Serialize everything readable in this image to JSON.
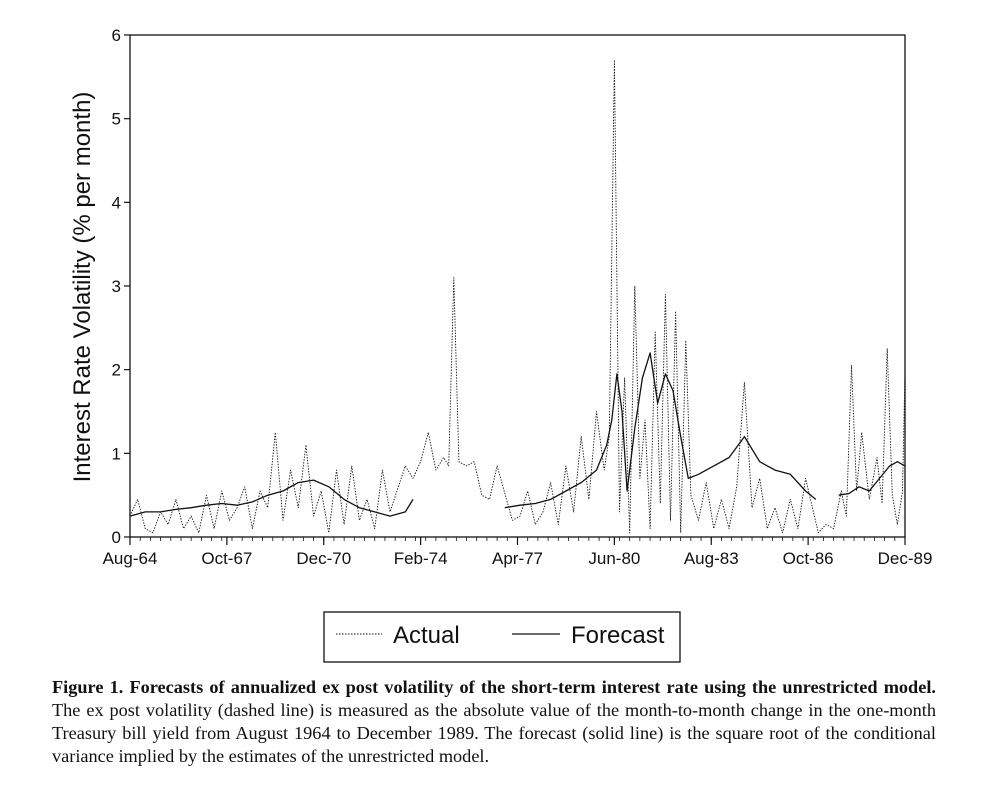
{
  "chart_data": {
    "type": "line",
    "ylabel": "Interest Rate Volatility (% per month)",
    "xlabel": "",
    "ylim": [
      0,
      6
    ],
    "yticks": [
      0,
      1,
      2,
      3,
      4,
      5,
      6
    ],
    "x_range": [
      "Aug-64",
      "Dec-89"
    ],
    "x_tick_labels": [
      "Aug-64",
      "Oct-67",
      "Dec-70",
      "Feb-74",
      "Apr-77",
      "Jun-80",
      "Aug-83",
      "Oct-86",
      "Dec-89"
    ],
    "grid": false,
    "legend": {
      "placement": "bottom-center",
      "entries": [
        "Actual",
        "Forecast"
      ]
    },
    "series": [
      {
        "name": "Actual",
        "style": "dashed",
        "points": [
          [
            "1964-08",
            0.25
          ],
          [
            "1964-11",
            0.45
          ],
          [
            "1965-02",
            0.1
          ],
          [
            "1965-05",
            0.05
          ],
          [
            "1965-08",
            0.3
          ],
          [
            "1965-11",
            0.15
          ],
          [
            "1966-02",
            0.45
          ],
          [
            "1966-05",
            0.1
          ],
          [
            "1966-08",
            0.25
          ],
          [
            "1966-11",
            0.05
          ],
          [
            "1967-02",
            0.5
          ],
          [
            "1967-05",
            0.1
          ],
          [
            "1967-08",
            0.55
          ],
          [
            "1967-11",
            0.2
          ],
          [
            "1968-02",
            0.35
          ],
          [
            "1968-05",
            0.6
          ],
          [
            "1968-08",
            0.1
          ],
          [
            "1968-11",
            0.55
          ],
          [
            "1969-02",
            0.35
          ],
          [
            "1969-05",
            1.25
          ],
          [
            "1969-08",
            0.2
          ],
          [
            "1969-11",
            0.8
          ],
          [
            "1970-02",
            0.35
          ],
          [
            "1970-05",
            1.1
          ],
          [
            "1970-08",
            0.25
          ],
          [
            "1970-11",
            0.55
          ],
          [
            "1971-02",
            0.05
          ],
          [
            "1971-05",
            0.8
          ],
          [
            "1971-08",
            0.15
          ],
          [
            "1971-11",
            0.85
          ],
          [
            "1972-02",
            0.2
          ],
          [
            "1972-05",
            0.45
          ],
          [
            "1972-08",
            0.1
          ],
          [
            "1972-11",
            0.8
          ],
          [
            "1973-02",
            0.3
          ],
          [
            "1973-08",
            0.85
          ],
          [
            "1973-11",
            0.7
          ],
          [
            "1974-02",
            0.9
          ],
          [
            "1974-05",
            1.25
          ],
          [
            "1974-08",
            0.8
          ],
          [
            "1974-11",
            0.95
          ],
          [
            "1975-01",
            0.85
          ],
          [
            "1975-03",
            3.1
          ],
          [
            "1975-05",
            0.9
          ],
          [
            "1975-08",
            0.85
          ],
          [
            "1975-11",
            0.9
          ],
          [
            "1976-02",
            0.5
          ],
          [
            "1976-05",
            0.45
          ],
          [
            "1976-08",
            0.85
          ],
          [
            "1977-02",
            0.2
          ],
          [
            "1977-05",
            0.25
          ],
          [
            "1977-08",
            0.55
          ],
          [
            "1977-11",
            0.15
          ],
          [
            "1978-02",
            0.3
          ],
          [
            "1978-05",
            0.65
          ],
          [
            "1978-08",
            0.15
          ],
          [
            "1978-11",
            0.85
          ],
          [
            "1979-02",
            0.3
          ],
          [
            "1979-05",
            1.2
          ],
          [
            "1979-08",
            0.45
          ],
          [
            "1979-11",
            1.5
          ],
          [
            "1980-02",
            0.8
          ],
          [
            "1980-04",
            1.2
          ],
          [
            "1980-06",
            5.7
          ],
          [
            "1980-08",
            0.3
          ],
          [
            "1980-10",
            1.9
          ],
          [
            "1980-12",
            0.05
          ],
          [
            "1981-02",
            3.0
          ],
          [
            "1981-04",
            0.7
          ],
          [
            "1981-06",
            1.4
          ],
          [
            "1981-08",
            0.1
          ],
          [
            "1981-10",
            2.45
          ],
          [
            "1981-12",
            0.4
          ],
          [
            "1982-02",
            2.9
          ],
          [
            "1982-04",
            0.2
          ],
          [
            "1982-06",
            2.7
          ],
          [
            "1982-08",
            0.05
          ],
          [
            "1982-10",
            2.35
          ],
          [
            "1982-12",
            0.5
          ],
          [
            "1983-03",
            0.2
          ],
          [
            "1983-06",
            0.65
          ],
          [
            "1983-09",
            0.1
          ],
          [
            "1983-12",
            0.45
          ],
          [
            "1984-03",
            0.1
          ],
          [
            "1984-06",
            0.6
          ],
          [
            "1984-09",
            1.85
          ],
          [
            "1984-12",
            0.35
          ],
          [
            "1985-03",
            0.7
          ],
          [
            "1985-06",
            0.1
          ],
          [
            "1985-09",
            0.35
          ],
          [
            "1985-12",
            0.05
          ],
          [
            "1986-03",
            0.45
          ],
          [
            "1986-06",
            0.1
          ],
          [
            "1986-09",
            0.7
          ],
          [
            "1987-02",
            0.05
          ],
          [
            "1987-05",
            0.15
          ],
          [
            "1987-08",
            0.1
          ],
          [
            "1987-11",
            0.55
          ],
          [
            "1988-01",
            0.25
          ],
          [
            "1988-03",
            2.05
          ],
          [
            "1988-05",
            0.55
          ],
          [
            "1988-07",
            1.25
          ],
          [
            "1988-10",
            0.45
          ],
          [
            "1989-01",
            0.95
          ],
          [
            "1989-03",
            0.4
          ],
          [
            "1989-05",
            2.25
          ],
          [
            "1989-07",
            0.5
          ],
          [
            "1989-09",
            0.15
          ],
          [
            "1989-11",
            0.55
          ],
          [
            "1989-12",
            2.0
          ]
        ]
      },
      {
        "name": "Forecast",
        "style": "solid",
        "points": [
          [
            "1964-08",
            0.25
          ],
          [
            "1965-02",
            0.3
          ],
          [
            "1965-08",
            0.3
          ],
          [
            "1966-02",
            0.33
          ],
          [
            "1966-08",
            0.35
          ],
          [
            "1967-02",
            0.38
          ],
          [
            "1967-08",
            0.4
          ],
          [
            "1968-02",
            0.38
          ],
          [
            "1968-08",
            0.42
          ],
          [
            "1969-02",
            0.5
          ],
          [
            "1969-08",
            0.55
          ],
          [
            "1970-02",
            0.65
          ],
          [
            "1970-08",
            0.68
          ],
          [
            "1971-02",
            0.6
          ],
          [
            "1971-08",
            0.45
          ],
          [
            "1972-02",
            0.35
          ],
          [
            "1972-08",
            0.3
          ],
          [
            "1973-02",
            0.25
          ],
          [
            "1973-08",
            0.3
          ],
          [
            "1973-11",
            0.45
          ]
        ]
      },
      {
        "name": "Forecast",
        "style": "solid",
        "points": [
          [
            "1976-11",
            0.35
          ],
          [
            "1977-05",
            0.38
          ],
          [
            "1977-11",
            0.4
          ],
          [
            "1978-05",
            0.45
          ],
          [
            "1978-11",
            0.55
          ],
          [
            "1979-05",
            0.65
          ],
          [
            "1979-11",
            0.8
          ],
          [
            "1980-03",
            1.1
          ],
          [
            "1980-05",
            1.4
          ],
          [
            "1980-07",
            1.95
          ],
          [
            "1980-09",
            1.5
          ],
          [
            "1980-11",
            0.55
          ],
          [
            "1981-02",
            1.3
          ],
          [
            "1981-05",
            1.9
          ],
          [
            "1981-08",
            2.2
          ],
          [
            "1981-11",
            1.6
          ],
          [
            "1982-02",
            1.95
          ],
          [
            "1982-05",
            1.75
          ],
          [
            "1982-08",
            1.2
          ],
          [
            "1982-11",
            0.7
          ],
          [
            "1983-03",
            0.75
          ],
          [
            "1983-09",
            0.85
          ],
          [
            "1984-03",
            0.95
          ],
          [
            "1984-09",
            1.2
          ],
          [
            "1985-03",
            0.9
          ],
          [
            "1985-09",
            0.8
          ],
          [
            "1986-03",
            0.75
          ],
          [
            "1986-09",
            0.55
          ],
          [
            "1987-01",
            0.45
          ]
        ]
      },
      {
        "name": "Forecast",
        "style": "solid",
        "points": [
          [
            "1987-10",
            0.5
          ],
          [
            "1988-02",
            0.52
          ],
          [
            "1988-06",
            0.6
          ],
          [
            "1988-10",
            0.55
          ],
          [
            "1989-02",
            0.7
          ],
          [
            "1989-06",
            0.85
          ],
          [
            "1989-09",
            0.9
          ],
          [
            "1989-12",
            0.85
          ]
        ]
      }
    ]
  },
  "caption": {
    "bold": "Figure 1. Forecasts of annualized ex post volatility of the short-term interest rate using the unrestricted model.",
    "text": " The ex post volatility (dashed line) is measured as the absolute value of the month-to-month change in the one-month Treasury bill yield from August 1964 to December 1989. The forecast (solid line) is the square root of the conditional variance implied by the estimates of the unrestricted model."
  },
  "colors": {
    "ink": "#111111",
    "background": "#ffffff"
  }
}
